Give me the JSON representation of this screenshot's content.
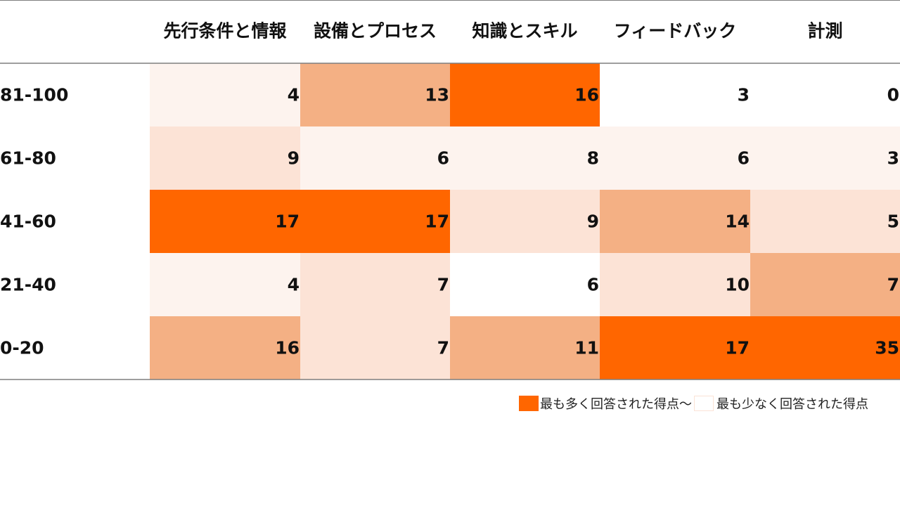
{
  "chart_data": {
    "type": "heatmap",
    "columns": [
      "先行条件と情報",
      "設備とプロセス",
      "知識とスキル",
      "フィードバック",
      "計測"
    ],
    "rows": [
      "81-100",
      "61-80",
      "41-60",
      "21-40",
      "0-20"
    ],
    "values": [
      [
        4,
        13,
        16,
        3,
        0
      ],
      [
        9,
        6,
        8,
        6,
        3
      ],
      [
        17,
        17,
        9,
        14,
        5
      ],
      [
        4,
        7,
        6,
        10,
        7
      ],
      [
        16,
        7,
        11,
        17,
        35
      ]
    ],
    "color_scale": [
      "#ffffff",
      "#fdf3ee",
      "#fce3d6",
      "#f4b084",
      "#ff6600"
    ],
    "color_levels": [
      [
        1,
        3,
        4,
        0,
        0
      ],
      [
        2,
        1,
        1,
        1,
        1
      ],
      [
        4,
        4,
        2,
        3,
        2
      ],
      [
        1,
        2,
        0,
        2,
        3
      ],
      [
        3,
        2,
        3,
        4,
        4
      ]
    ]
  },
  "legend": {
    "high_label": "最も多く回答された得点～",
    "low_label": "最も少なく回答された得点",
    "high_color": "#ff6600",
    "low_color": "#ffffff"
  },
  "colors": {
    "rule": "#7f7f7f",
    "text": "#111111"
  }
}
